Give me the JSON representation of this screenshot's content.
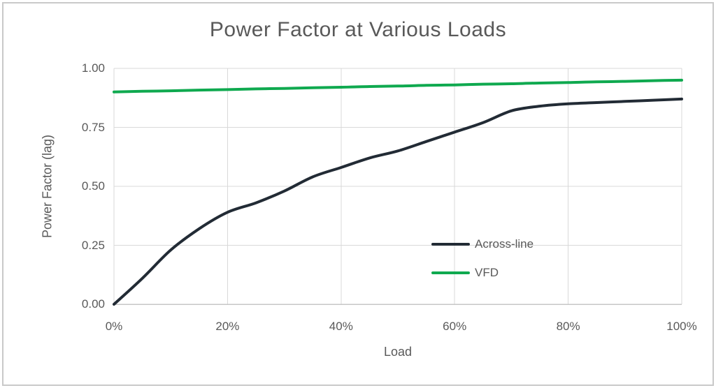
{
  "title": "Power Factor at Various Loads",
  "colors": {
    "across_line": "#222B35",
    "vfd": "#0FA94F",
    "gridline": "#D9D9D9",
    "axis_line": "#C6C6C6",
    "text": "#595959",
    "frame_border": "#C9C9C9",
    "background": "#FFFFFF"
  },
  "chart_data": {
    "type": "line",
    "title": "Power Factor at Various Loads",
    "xlabel": "Load",
    "ylabel": "Power Factor (lag)",
    "xlim": [
      0,
      100
    ],
    "ylim": [
      0.0,
      1.0
    ],
    "grid": true,
    "legend_position": "inside-center-right",
    "x_ticks": [
      0,
      20,
      40,
      60,
      80,
      100
    ],
    "x_tick_labels": [
      "0%",
      "20%",
      "40%",
      "60%",
      "80%",
      "100%"
    ],
    "y_ticks": [
      0.0,
      0.25,
      0.5,
      0.75,
      1.0
    ],
    "y_tick_labels": [
      "0.00",
      "0.25",
      "0.50",
      "0.75",
      "1.00"
    ],
    "x": [
      0,
      5,
      10,
      15,
      20,
      25,
      30,
      35,
      40,
      45,
      50,
      55,
      60,
      65,
      70,
      75,
      80,
      85,
      90,
      95,
      100
    ],
    "series": [
      {
        "name": "Across-line",
        "color": "#222B35",
        "values": [
          0.0,
          0.11,
          0.23,
          0.32,
          0.39,
          0.43,
          0.48,
          0.54,
          0.58,
          0.62,
          0.65,
          0.69,
          0.73,
          0.77,
          0.82,
          0.84,
          0.85,
          0.855,
          0.86,
          0.865,
          0.87
        ]
      },
      {
        "name": "VFD",
        "color": "#0FA94F",
        "values": [
          0.9,
          0.903,
          0.905,
          0.908,
          0.91,
          0.913,
          0.915,
          0.918,
          0.92,
          0.923,
          0.925,
          0.928,
          0.93,
          0.933,
          0.935,
          0.938,
          0.94,
          0.943,
          0.945,
          0.948,
          0.95
        ]
      }
    ]
  }
}
